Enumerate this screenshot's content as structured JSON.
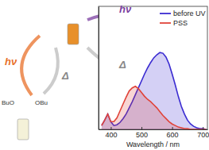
{
  "chart_data": {
    "type": "line",
    "x_label": "Wavelength / nm",
    "x": [
      370,
      380,
      390,
      400,
      410,
      420,
      430,
      440,
      450,
      460,
      470,
      480,
      490,
      500,
      510,
      520,
      530,
      540,
      550,
      560,
      570,
      580,
      590,
      600,
      610,
      620,
      630,
      640,
      650,
      660,
      670,
      680,
      690,
      700,
      710
    ],
    "series": [
      {
        "name": "before UV",
        "color": "#3a2bd1",
        "values": [
          0.05,
          0.12,
          0.2,
          0.1,
          0.05,
          0.06,
          0.09,
          0.14,
          0.2,
          0.28,
          0.36,
          0.45,
          0.54,
          0.63,
          0.72,
          0.8,
          0.87,
          0.93,
          0.97,
          1.0,
          0.99,
          0.94,
          0.85,
          0.72,
          0.58,
          0.43,
          0.3,
          0.2,
          0.12,
          0.07,
          0.04,
          0.02,
          0.01,
          0.01,
          0.0
        ]
      },
      {
        "name": "PSS",
        "color": "#e0443a",
        "values": [
          0.05,
          0.12,
          0.2,
          0.1,
          0.1,
          0.15,
          0.24,
          0.33,
          0.42,
          0.5,
          0.54,
          0.56,
          0.53,
          0.48,
          0.43,
          0.39,
          0.36,
          0.32,
          0.28,
          0.23,
          0.18,
          0.14,
          0.1,
          0.07,
          0.05,
          0.03,
          0.02,
          0.01,
          0.01,
          0.0,
          0.0,
          0.0,
          0.0,
          0.0,
          0.0
        ]
      }
    ],
    "xlim": [
      360,
      715
    ],
    "xticks": [
      400,
      500,
      600,
      700
    ],
    "ylim": [
      0,
      1.6
    ],
    "tick_labels": "x",
    "legend": "upper right",
    "annotations": [
      {
        "text": "hν",
        "color": "#e8702a"
      },
      {
        "text": "Δ",
        "color": "#888888"
      },
      {
        "text": "hν",
        "color": "#7b3fa0"
      },
      {
        "text": "Δ",
        "color": "#888888"
      },
      {
        "text": "BuO",
        "color": "#333333"
      },
      {
        "text": "OBu",
        "color": "#333333"
      }
    ]
  }
}
